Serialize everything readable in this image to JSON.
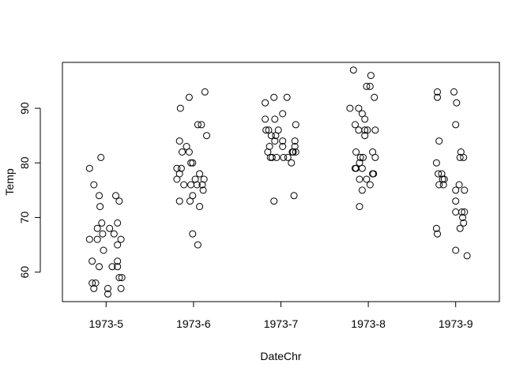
{
  "chart_data": {
    "type": "scatter",
    "title": "",
    "xlabel": "DateChr",
    "ylabel": "Temp",
    "categories": [
      "1973-5",
      "1973-6",
      "1973-7",
      "1973-8",
      "1973-9"
    ],
    "yticks": [
      60,
      70,
      80,
      90
    ],
    "ylim": [
      54.6,
      98.4
    ],
    "grid": false,
    "legend": "none",
    "marker": "open-circle",
    "colors": {
      "points": "#000000",
      "axes": "#000000",
      "background": "#ffffff"
    },
    "points": [
      {
        "cat": "1973-5",
        "offset": -0.19,
        "y": 66
      },
      {
        "cat": "1973-5",
        "offset": -0.19,
        "y": 79
      },
      {
        "cat": "1973-5",
        "offset": -0.16,
        "y": 62
      },
      {
        "cat": "1973-5",
        "offset": -0.16,
        "y": 58
      },
      {
        "cat": "1973-5",
        "offset": -0.14,
        "y": 76
      },
      {
        "cat": "1973-5",
        "offset": -0.14,
        "y": 57
      },
      {
        "cat": "1973-5",
        "offset": -0.12,
        "y": 58
      },
      {
        "cat": "1973-5",
        "offset": -0.1,
        "y": 68
      },
      {
        "cat": "1973-5",
        "offset": -0.1,
        "y": 66
      },
      {
        "cat": "1973-5",
        "offset": -0.08,
        "y": 74
      },
      {
        "cat": "1973-5",
        "offset": -0.08,
        "y": 61
      },
      {
        "cat": "1973-5",
        "offset": -0.07,
        "y": 72
      },
      {
        "cat": "1973-5",
        "offset": -0.06,
        "y": 81
      },
      {
        "cat": "1973-5",
        "offset": -0.05,
        "y": 69
      },
      {
        "cat": "1973-5",
        "offset": -0.04,
        "y": 67
      },
      {
        "cat": "1973-5",
        "offset": -0.03,
        "y": 64
      },
      {
        "cat": "1973-5",
        "offset": 0.02,
        "y": 57
      },
      {
        "cat": "1973-5",
        "offset": 0.02,
        "y": 56
      },
      {
        "cat": "1973-5",
        "offset": 0.04,
        "y": 68
      },
      {
        "cat": "1973-5",
        "offset": 0.07,
        "y": 61
      },
      {
        "cat": "1973-5",
        "offset": 0.09,
        "y": 67
      },
      {
        "cat": "1973-5",
        "offset": 0.11,
        "y": 74
      },
      {
        "cat": "1973-5",
        "offset": 0.13,
        "y": 69
      },
      {
        "cat": "1973-5",
        "offset": 0.13,
        "y": 65
      },
      {
        "cat": "1973-5",
        "offset": 0.13,
        "y": 62
      },
      {
        "cat": "1973-5",
        "offset": 0.13,
        "y": 61
      },
      {
        "cat": "1973-5",
        "offset": 0.15,
        "y": 73
      },
      {
        "cat": "1973-5",
        "offset": 0.15,
        "y": 59
      },
      {
        "cat": "1973-5",
        "offset": 0.17,
        "y": 66
      },
      {
        "cat": "1973-5",
        "offset": 0.17,
        "y": 57
      },
      {
        "cat": "1973-5",
        "offset": 0.18,
        "y": 59
      },
      {
        "cat": "1973-6",
        "offset": -0.19,
        "y": 79
      },
      {
        "cat": "1973-6",
        "offset": -0.19,
        "y": 77
      },
      {
        "cat": "1973-6",
        "offset": -0.16,
        "y": 84
      },
      {
        "cat": "1973-6",
        "offset": -0.16,
        "y": 78
      },
      {
        "cat": "1973-6",
        "offset": -0.16,
        "y": 73
      },
      {
        "cat": "1973-6",
        "offset": -0.15,
        "y": 90
      },
      {
        "cat": "1973-6",
        "offset": -0.14,
        "y": 79
      },
      {
        "cat": "1973-6",
        "offset": -0.13,
        "y": 82
      },
      {
        "cat": "1973-6",
        "offset": -0.11,
        "y": 76
      },
      {
        "cat": "1973-6",
        "offset": -0.08,
        "y": 83
      },
      {
        "cat": "1973-6",
        "offset": -0.05,
        "y": 92
      },
      {
        "cat": "1973-6",
        "offset": -0.05,
        "y": 82
      },
      {
        "cat": "1973-6",
        "offset": -0.04,
        "y": 73
      },
      {
        "cat": "1973-6",
        "offset": -0.03,
        "y": 80
      },
      {
        "cat": "1973-6",
        "offset": -0.03,
        "y": 76
      },
      {
        "cat": "1973-6",
        "offset": -0.01,
        "y": 80
      },
      {
        "cat": "1973-6",
        "offset": -0.01,
        "y": 74
      },
      {
        "cat": "1973-6",
        "offset": -0.01,
        "y": 67
      },
      {
        "cat": "1973-6",
        "offset": 0.02,
        "y": 77
      },
      {
        "cat": "1973-6",
        "offset": 0.04,
        "y": 76
      },
      {
        "cat": "1973-6",
        "offset": 0.05,
        "y": 87
      },
      {
        "cat": "1973-6",
        "offset": 0.05,
        "y": 65
      },
      {
        "cat": "1973-6",
        "offset": 0.07,
        "y": 78
      },
      {
        "cat": "1973-6",
        "offset": 0.07,
        "y": 72
      },
      {
        "cat": "1973-6",
        "offset": 0.09,
        "y": 87
      },
      {
        "cat": "1973-6",
        "offset": 0.1,
        "y": 76
      },
      {
        "cat": "1973-6",
        "offset": 0.11,
        "y": 75
      },
      {
        "cat": "1973-6",
        "offset": 0.12,
        "y": 77
      },
      {
        "cat": "1973-6",
        "offset": 0.13,
        "y": 93
      },
      {
        "cat": "1973-6",
        "offset": 0.15,
        "y": 85
      },
      {
        "cat": "1973-7",
        "offset": -0.18,
        "y": 91
      },
      {
        "cat": "1973-7",
        "offset": -0.18,
        "y": 88
      },
      {
        "cat": "1973-7",
        "offset": -0.17,
        "y": 86
      },
      {
        "cat": "1973-7",
        "offset": -0.15,
        "y": 82
      },
      {
        "cat": "1973-7",
        "offset": -0.14,
        "y": 86
      },
      {
        "cat": "1973-7",
        "offset": -0.13,
        "y": 83
      },
      {
        "cat": "1973-7",
        "offset": -0.12,
        "y": 81
      },
      {
        "cat": "1973-7",
        "offset": -0.11,
        "y": 85
      },
      {
        "cat": "1973-7",
        "offset": -0.1,
        "y": 81
      },
      {
        "cat": "1973-7",
        "offset": -0.08,
        "y": 92
      },
      {
        "cat": "1973-7",
        "offset": -0.08,
        "y": 73
      },
      {
        "cat": "1973-7",
        "offset": -0.07,
        "y": 88
      },
      {
        "cat": "1973-7",
        "offset": -0.07,
        "y": 84
      },
      {
        "cat": "1973-7",
        "offset": -0.06,
        "y": 85
      },
      {
        "cat": "1973-7",
        "offset": -0.05,
        "y": 81
      },
      {
        "cat": "1973-7",
        "offset": -0.03,
        "y": 86
      },
      {
        "cat": "1973-7",
        "offset": 0.02,
        "y": 89
      },
      {
        "cat": "1973-7",
        "offset": 0.02,
        "y": 84
      },
      {
        "cat": "1973-7",
        "offset": 0.02,
        "y": 83
      },
      {
        "cat": "1973-7",
        "offset": 0.03,
        "y": 81
      },
      {
        "cat": "1973-7",
        "offset": 0.07,
        "y": 92
      },
      {
        "cat": "1973-7",
        "offset": 0.08,
        "y": 81
      },
      {
        "cat": "1973-7",
        "offset": 0.12,
        "y": 80
      },
      {
        "cat": "1973-7",
        "offset": 0.13,
        "y": 82
      },
      {
        "cat": "1973-7",
        "offset": 0.14,
        "y": 82
      },
      {
        "cat": "1973-7",
        "offset": 0.15,
        "y": 74
      },
      {
        "cat": "1973-7",
        "offset": 0.16,
        "y": 84
      },
      {
        "cat": "1973-7",
        "offset": 0.16,
        "y": 83
      },
      {
        "cat": "1973-7",
        "offset": 0.17,
        "y": 87
      },
      {
        "cat": "1973-7",
        "offset": 0.17,
        "y": 82
      },
      {
        "cat": "1973-7",
        "offset": 0.14,
        "y": 82
      },
      {
        "cat": "1973-8",
        "offset": -0.21,
        "y": 90
      },
      {
        "cat": "1973-8",
        "offset": -0.17,
        "y": 97
      },
      {
        "cat": "1973-8",
        "offset": -0.15,
        "y": 87
      },
      {
        "cat": "1973-8",
        "offset": -0.15,
        "y": 79
      },
      {
        "cat": "1973-8",
        "offset": -0.14,
        "y": 82
      },
      {
        "cat": "1973-8",
        "offset": -0.14,
        "y": 79
      },
      {
        "cat": "1973-8",
        "offset": -0.11,
        "y": 90
      },
      {
        "cat": "1973-8",
        "offset": -0.11,
        "y": 86
      },
      {
        "cat": "1973-8",
        "offset": -0.1,
        "y": 80
      },
      {
        "cat": "1973-8",
        "offset": -0.1,
        "y": 77
      },
      {
        "cat": "1973-8",
        "offset": -0.1,
        "y": 72
      },
      {
        "cat": "1973-8",
        "offset": -0.09,
        "y": 81
      },
      {
        "cat": "1973-8",
        "offset": -0.07,
        "y": 89
      },
      {
        "cat": "1973-8",
        "offset": -0.07,
        "y": 79
      },
      {
        "cat": "1973-8",
        "offset": -0.07,
        "y": 75
      },
      {
        "cat": "1973-8",
        "offset": -0.06,
        "y": 81
      },
      {
        "cat": "1973-8",
        "offset": -0.04,
        "y": 88
      },
      {
        "cat": "1973-8",
        "offset": -0.04,
        "y": 86
      },
      {
        "cat": "1973-8",
        "offset": -0.04,
        "y": 85
      },
      {
        "cat": "1973-8",
        "offset": -0.02,
        "y": 94
      },
      {
        "cat": "1973-8",
        "offset": -0.02,
        "y": 77
      },
      {
        "cat": "1973-8",
        "offset": -0.01,
        "y": 86
      },
      {
        "cat": "1973-8",
        "offset": 0.02,
        "y": 94
      },
      {
        "cat": "1973-8",
        "offset": 0.02,
        "y": 76
      },
      {
        "cat": "1973-8",
        "offset": 0.03,
        "y": 96
      },
      {
        "cat": "1973-8",
        "offset": 0.05,
        "y": 82
      },
      {
        "cat": "1973-8",
        "offset": 0.05,
        "y": 78
      },
      {
        "cat": "1973-8",
        "offset": 0.06,
        "y": 78
      },
      {
        "cat": "1973-8",
        "offset": 0.07,
        "y": 92
      },
      {
        "cat": "1973-8",
        "offset": 0.08,
        "y": 86
      },
      {
        "cat": "1973-8",
        "offset": 0.08,
        "y": 81
      },
      {
        "cat": "1973-9",
        "offset": -0.22,
        "y": 80
      },
      {
        "cat": "1973-9",
        "offset": -0.22,
        "y": 68
      },
      {
        "cat": "1973-9",
        "offset": -0.21,
        "y": 93
      },
      {
        "cat": "1973-9",
        "offset": -0.21,
        "y": 92
      },
      {
        "cat": "1973-9",
        "offset": -0.21,
        "y": 67
      },
      {
        "cat": "1973-9",
        "offset": -0.2,
        "y": 78
      },
      {
        "cat": "1973-9",
        "offset": -0.19,
        "y": 84
      },
      {
        "cat": "1973-9",
        "offset": -0.19,
        "y": 76
      },
      {
        "cat": "1973-9",
        "offset": -0.16,
        "y": 78
      },
      {
        "cat": "1973-9",
        "offset": -0.15,
        "y": 77
      },
      {
        "cat": "1973-9",
        "offset": -0.13,
        "y": 77
      },
      {
        "cat": "1973-9",
        "offset": -0.14,
        "y": 76
      },
      {
        "cat": "1973-9",
        "offset": -0.02,
        "y": 93
      },
      {
        "cat": "1973-9",
        "offset": 0.0,
        "y": 87
      },
      {
        "cat": "1973-9",
        "offset": 0.0,
        "y": 75
      },
      {
        "cat": "1973-9",
        "offset": 0.0,
        "y": 73
      },
      {
        "cat": "1973-9",
        "offset": 0.0,
        "y": 71
      },
      {
        "cat": "1973-9",
        "offset": 0.0,
        "y": 64
      },
      {
        "cat": "1973-9",
        "offset": 0.01,
        "y": 91
      },
      {
        "cat": "1973-9",
        "offset": 0.04,
        "y": 76
      },
      {
        "cat": "1973-9",
        "offset": 0.05,
        "y": 68
      },
      {
        "cat": "1973-9",
        "offset": 0.05,
        "y": 81
      },
      {
        "cat": "1973-9",
        "offset": 0.06,
        "y": 82
      },
      {
        "cat": "1973-9",
        "offset": 0.07,
        "y": 71
      },
      {
        "cat": "1973-9",
        "offset": 0.08,
        "y": 70
      },
      {
        "cat": "1973-9",
        "offset": 0.09,
        "y": 69
      },
      {
        "cat": "1973-9",
        "offset": 0.09,
        "y": 81
      },
      {
        "cat": "1973-9",
        "offset": 0.1,
        "y": 71
      },
      {
        "cat": "1973-9",
        "offset": 0.1,
        "y": 75
      },
      {
        "cat": "1973-9",
        "offset": 0.13,
        "y": 63
      }
    ]
  }
}
